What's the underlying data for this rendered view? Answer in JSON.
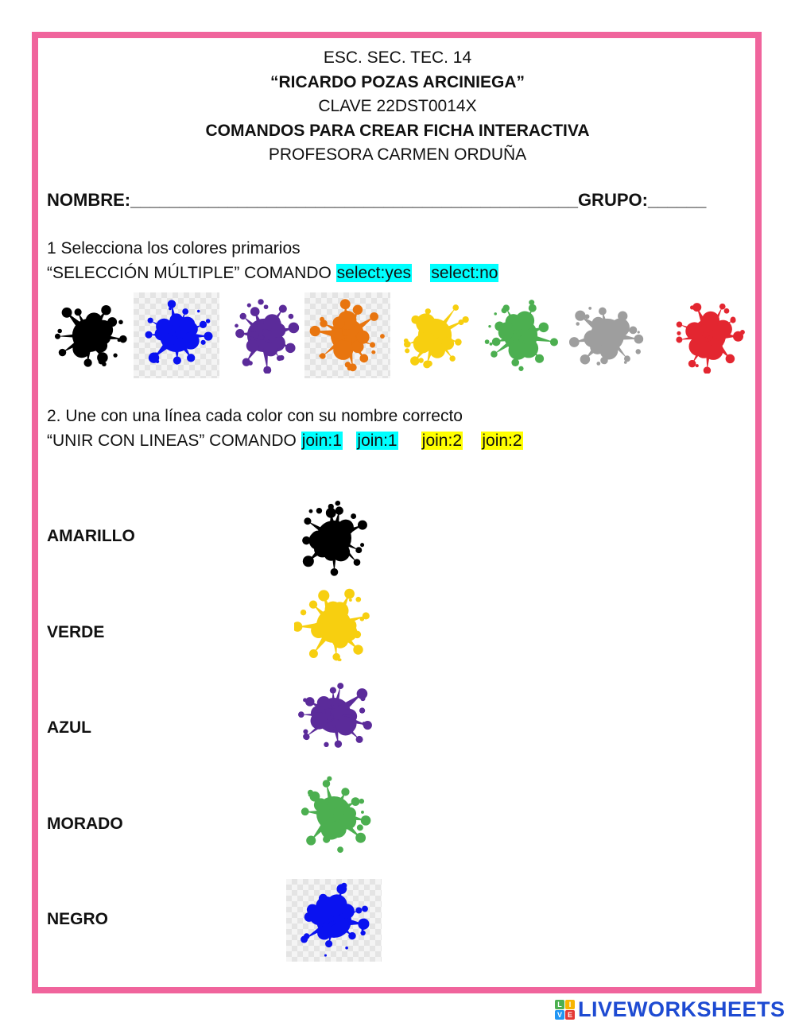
{
  "header": {
    "school": "ESC. SEC. TEC. 14",
    "school_name": "“RICARDO POZAS ARCINIEGA”",
    "clave": "CLAVE 22DST0014X",
    "title": "COMANDOS PARA CREAR FICHA INTERACTIVA",
    "teacher": "PROFESORA CARMEN ORDUÑA"
  },
  "name_row": {
    "nombre": "NOMBRE:______________________________________________",
    "grupo": "GRUPO:______"
  },
  "q1": {
    "title": "1 Selecciona los colores primarios",
    "command_prefix": " “SELECCIÓN MÚLTIPLE” COMANDO ",
    "tags": [
      {
        "text": "select:yes",
        "color": "#00ffff"
      },
      {
        "text": "select:no",
        "color": "#00ffff"
      }
    ],
    "splats": [
      {
        "color": "#000000",
        "icon": "splat-icon",
        "checker": false
      },
      {
        "color": "#0a12f0",
        "icon": "splat-icon",
        "checker": true
      },
      {
        "color": "#5b2b9a",
        "icon": "splat-icon",
        "checker": false
      },
      {
        "color": "#e8750f",
        "icon": "splat-icon",
        "checker": true
      },
      {
        "color": "#f7cf10",
        "icon": "splat-icon",
        "checker": false
      },
      {
        "color": "#4caf50",
        "icon": "splat-icon",
        "checker": false
      },
      {
        "color": "#9e9e9e",
        "icon": "splat-icon",
        "checker": false
      },
      {
        "color": "#e32630",
        "icon": "splat-icon",
        "checker": false
      }
    ]
  },
  "q2": {
    "title": "2. Une con una línea cada color con su nombre correcto",
    "command_prefix": "“UNIR CON LINEAS” COMANDO ",
    "tags": [
      {
        "text": "join:1",
        "color": "#00ffff"
      },
      {
        "text": "join:1",
        "color": "#00ffff"
      },
      {
        "text": "join:2",
        "color": "#ffff00"
      },
      {
        "text": "join:2",
        "color": "#ffff00"
      }
    ],
    "labels": [
      "AMARILLO",
      "VERDE",
      "AZUL",
      "MORADO",
      "NEGRO"
    ],
    "splats": [
      {
        "color": "#000000",
        "checker": false
      },
      {
        "color": "#f7cf10",
        "checker": false
      },
      {
        "color": "#5b2b9a",
        "checker": false
      },
      {
        "color": "#4caf50",
        "checker": false
      },
      {
        "color": "#0a12f0",
        "checker": true
      }
    ]
  },
  "brand": {
    "logo_text": "LIVEWORKSHEETS",
    "logo_letters": [
      "L",
      "I",
      "V",
      "E"
    ],
    "logo_colors": [
      "#4caf50",
      "#f7b500",
      "#2196f3",
      "#e53935"
    ],
    "frame_color": "#f0649c"
  }
}
